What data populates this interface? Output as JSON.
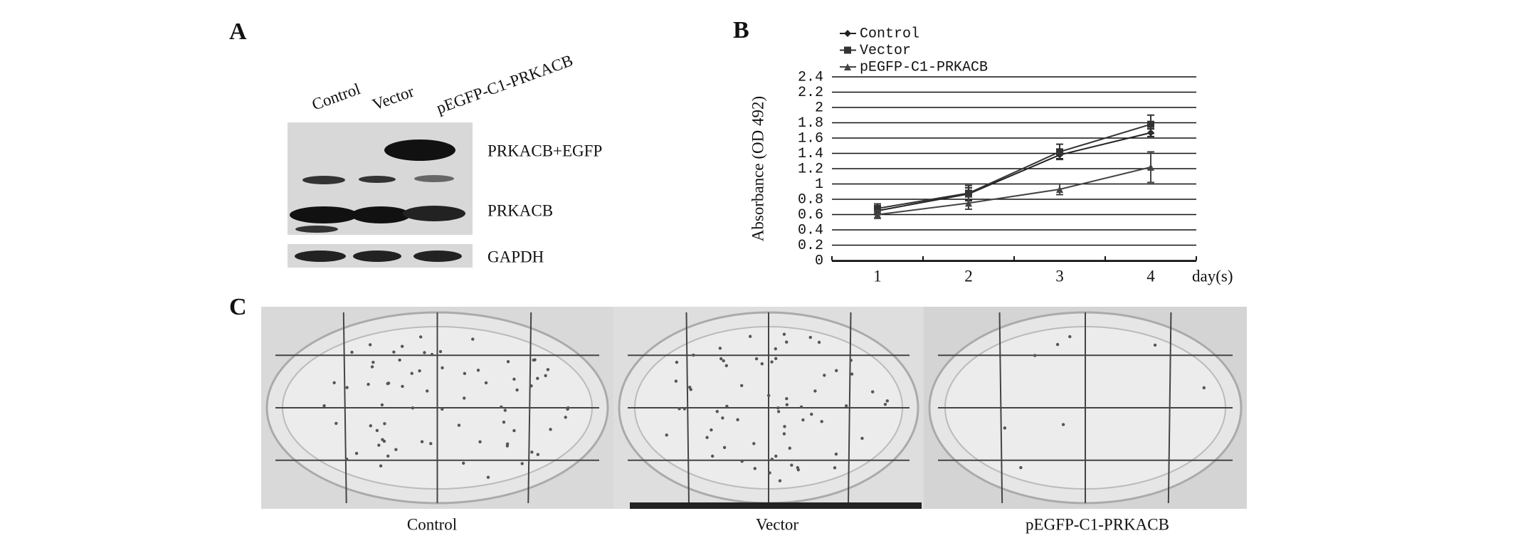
{
  "panel_a": {
    "panel_label": "A",
    "lanes": [
      "Control",
      "Vector",
      "pEGFP-C1-PRKACB"
    ],
    "bands": [
      "PRKACB+EGFP",
      "PRKACB",
      "GAPDH"
    ]
  },
  "chart_data": {
    "type": "line",
    "panel_label": "B",
    "y_label": "Absorbance (OD 492)",
    "x_label": "day(s)",
    "categories": [
      "1",
      "2",
      "3",
      "4"
    ],
    "series": [
      {
        "name": "Control",
        "color": "#222222",
        "marker": "diamond",
        "values": [
          0.65,
          0.87,
          1.38,
          1.67
        ],
        "errors": [
          0.05,
          0.08,
          0.05,
          0.05
        ]
      },
      {
        "name": "Vector",
        "color": "#333333",
        "marker": "square",
        "values": [
          0.68,
          0.88,
          1.42,
          1.78
        ],
        "errors": [
          0.06,
          0.1,
          0.1,
          0.12
        ]
      },
      {
        "name": "pEGFP-C1-PRKACB",
        "color": "#444444",
        "marker": "triangle",
        "values": [
          0.6,
          0.75,
          0.93,
          1.22
        ],
        "errors": [
          0.05,
          0.08,
          0.07,
          0.2
        ]
      }
    ],
    "ylim": [
      0,
      2.4
    ],
    "yticks": [
      0,
      0.2,
      0.4,
      0.6,
      0.8,
      1,
      1.2,
      1.4,
      1.6,
      1.8,
      2,
      2.2,
      2.4
    ],
    "grid": true
  },
  "panel_c": {
    "panel_label": "C",
    "plates": [
      "Control",
      "Vector",
      "pEGFP-C1-PRKACB"
    ]
  }
}
